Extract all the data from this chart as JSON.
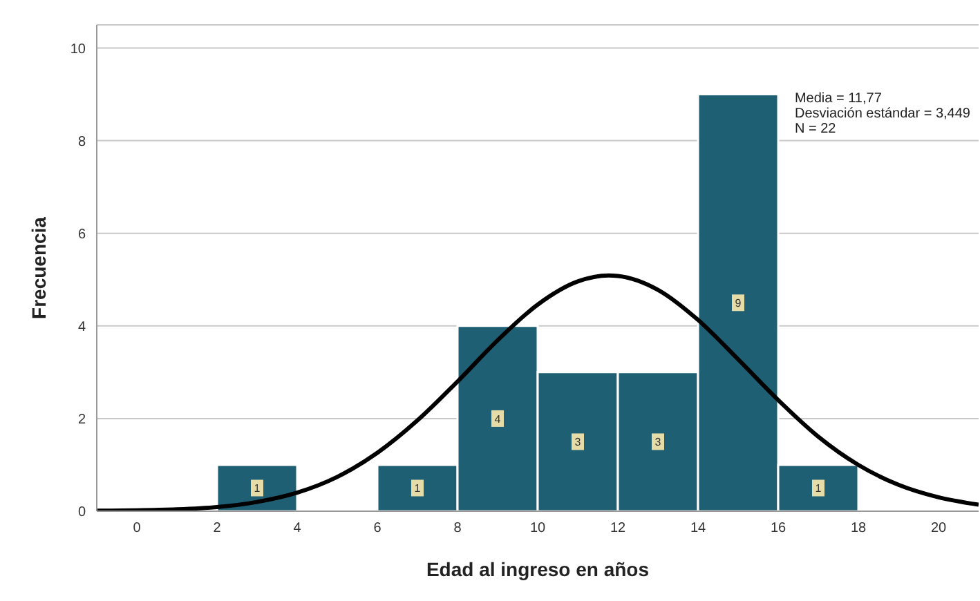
{
  "chart_data": {
    "type": "histogram",
    "xlabel": "Edad al ingreso en años",
    "ylabel": "Frecuencia",
    "bins": [
      2,
      4,
      6,
      8,
      10,
      12,
      14,
      16,
      18
    ],
    "series": [
      {
        "color": "#1e5f74",
        "values": [
          1,
          0,
          1,
          4,
          3,
          3,
          9,
          1
        ],
        "value_labels": [
          "1",
          null,
          "1",
          "4",
          "3",
          "3",
          "9",
          "1"
        ]
      },
      {
        "type": "line",
        "color": "#000000",
        "marker": "none",
        "x": [
          -1,
          0,
          1,
          2,
          3,
          4,
          5,
          6,
          7,
          8,
          9,
          10,
          11,
          11.77,
          12,
          13,
          14,
          15,
          16,
          17,
          18,
          19,
          20,
          21
        ],
        "values": [
          0.01,
          0.02,
          0.04,
          0.09,
          0.2,
          0.4,
          0.74,
          1.26,
          1.96,
          2.8,
          3.69,
          4.46,
          4.96,
          5.09,
          5.08,
          4.78,
          4.13,
          3.28,
          2.4,
          1.61,
          1.0,
          0.57,
          0.3,
          0.14
        ]
      }
    ],
    "xlim": [
      -1,
      21
    ],
    "xticks": [
      0,
      2,
      4,
      6,
      8,
      10,
      12,
      14,
      16,
      18,
      20
    ],
    "ylim": [
      0,
      10.5
    ],
    "yticks": [
      0,
      2,
      4,
      6,
      8,
      10
    ],
    "grid": "y",
    "annotations": [
      "Media = 11,77",
      "Desviación estándar = 3,449",
      "N = 22"
    ]
  }
}
